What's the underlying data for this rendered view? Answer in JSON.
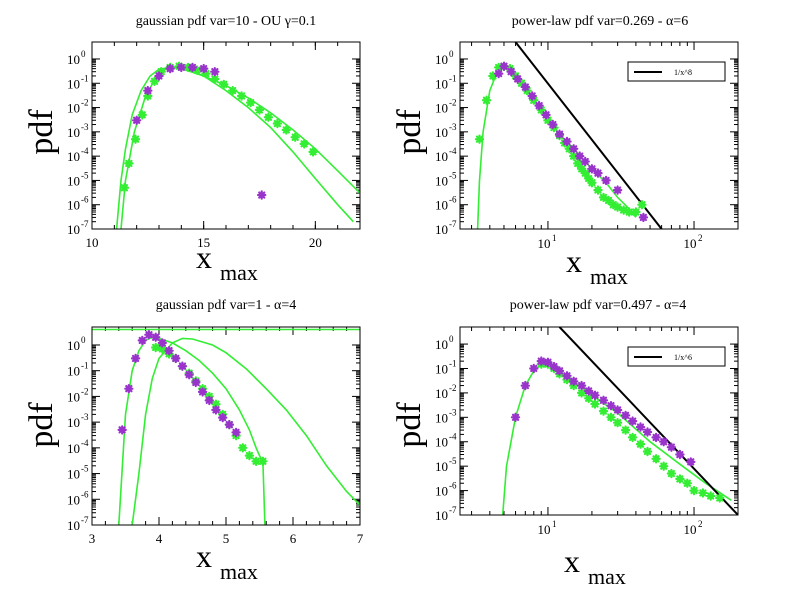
{
  "chart_data": [
    {
      "type": "scatter",
      "title": "gaussian pdf var=10 - OU  γ=0.1",
      "xlabel": "x",
      "xlabel_sub": "max",
      "ylabel": "pdf",
      "xscale": "linear",
      "yscale": "log",
      "xlim": [
        10,
        22
      ],
      "ylim": [
        1e-07,
        5
      ],
      "xticks": [
        10,
        15,
        20
      ],
      "xtick_labels": [
        "10",
        "15",
        "20"
      ],
      "yticks_exp": [
        -7,
        -6,
        -5,
        -4,
        -3,
        -2,
        -1,
        0
      ],
      "legend": null,
      "series": [
        {
          "name": "green points",
          "kind": "points",
          "color": "#33ee33",
          "x": [
            11.45,
            11.65,
            11.95,
            12.25,
            12.5,
            12.8,
            13.1,
            13.5,
            13.9,
            14.3,
            14.7,
            15.1,
            15.5,
            15.9,
            16.3,
            16.7,
            17.1,
            17.5,
            17.9,
            18.3,
            18.7,
            19.1,
            19.5,
            19.9
          ],
          "y": [
            5e-06,
            5e-05,
            0.0005,
            0.005,
            0.03,
            0.12,
            0.3,
            0.45,
            0.5,
            0.45,
            0.35,
            0.25,
            0.15,
            0.09,
            0.05,
            0.03,
            0.016,
            0.008,
            0.004,
            0.0022,
            0.0012,
            0.0006,
            0.00032,
            0.00015
          ]
        },
        {
          "name": "purple points",
          "kind": "points",
          "color": "#9933cc",
          "x": [
            12.0,
            12.5,
            13.0,
            13.5,
            14.0,
            14.5,
            15.0,
            15.5,
            17.6
          ],
          "y": [
            0.003,
            0.05,
            0.2,
            0.4,
            0.45,
            0.45,
            0.4,
            0.3,
            2.5e-06
          ]
        },
        {
          "name": "green curve 1",
          "kind": "line",
          "color": "#33ee33",
          "x": [
            11.1,
            11.3,
            11.5,
            11.8,
            12.2,
            12.6,
            13.0,
            13.5,
            14.0,
            15.0,
            16.0,
            17.0,
            18.0,
            19.0,
            20.0,
            21.0,
            22.0
          ],
          "y": [
            1e-07,
            1e-05,
            0.0002,
            0.005,
            0.05,
            0.2,
            0.38,
            0.45,
            0.4,
            0.2,
            0.08,
            0.025,
            0.006,
            0.0012,
            0.0002,
            2.5e-05,
            3e-06
          ]
        },
        {
          "name": "green curve 2",
          "kind": "line",
          "color": "#33ee33",
          "x": [
            11.3,
            11.5,
            11.9,
            12.4,
            12.9,
            13.4,
            14.0,
            15.0,
            16.0,
            17.0,
            18.0,
            19.0,
            20.0,
            21.0,
            21.7
          ],
          "y": [
            1e-07,
            1e-05,
            0.001,
            0.03,
            0.2,
            0.45,
            0.45,
            0.2,
            0.05,
            0.01,
            0.0015,
            0.00015,
            1.2e-05,
            1e-06,
            2e-07
          ]
        }
      ]
    },
    {
      "type": "scatter",
      "title": "power-law pdf var=0.269 -  α=6",
      "xlabel": "x",
      "xlabel_sub": "max",
      "ylabel": "pdf",
      "xscale": "log",
      "yscale": "log",
      "xlim": [
        2.5,
        200
      ],
      "ylim": [
        1e-07,
        5
      ],
      "xticks_exp": [
        1,
        2
      ],
      "yticks_exp": [
        -7,
        -6,
        -5,
        -4,
        -3,
        -2,
        -1,
        0
      ],
      "legend": {
        "label": "1/x^8",
        "position": "top-right"
      },
      "series": [
        {
          "name": "green points",
          "kind": "points",
          "color": "#33ee33",
          "x": [
            3.4,
            3.8,
            4.2,
            4.6,
            5.0,
            5.5,
            6.0,
            6.6,
            7.2,
            8.0,
            9.0,
            10.0,
            11.0,
            12.0,
            13.0,
            14.0,
            15.0,
            16.0,
            17.0,
            18.0,
            19.0,
            20.0,
            22.0,
            24.0,
            26.0,
            28.0,
            30.0,
            33.0,
            36.0,
            40.0,
            44.0
          ],
          "y": [
            0.0005,
            0.02,
            0.2,
            0.45,
            0.5,
            0.4,
            0.2,
            0.1,
            0.05,
            0.02,
            0.008,
            0.003,
            0.0015,
            0.0007,
            0.00035,
            0.0002,
            0.0001,
            5e-05,
            3e-05,
            2e-05,
            1.2e-05,
            8e-06,
            4e-06,
            2e-06,
            1.5e-06,
            1e-06,
            8e-07,
            6e-07,
            5e-07,
            5e-07,
            1e-06
          ]
        },
        {
          "name": "purple points",
          "kind": "points",
          "color": "#9933cc",
          "x": [
            4.6,
            5.0,
            5.6,
            6.2,
            7.0,
            7.8,
            8.7,
            9.7,
            10.8,
            12.0,
            13.5,
            15.0,
            16.5,
            18.0,
            20.0,
            22.0,
            25.0,
            30.0,
            45.0
          ],
          "y": [
            0.25,
            0.5,
            0.3,
            0.15,
            0.07,
            0.03,
            0.012,
            0.005,
            0.002,
            0.0008,
            0.0004,
            0.0002,
            0.0001,
            6e-05,
            3e-05,
            2e-05,
            1e-05,
            4e-06,
            3e-07
          ]
        },
        {
          "name": "green curve",
          "kind": "line",
          "color": "#33ee33",
          "x": [
            3.3,
            3.4,
            3.6,
            4.0,
            4.5,
            5.0,
            6.0,
            7.0,
            8.0,
            10.0,
            12.0,
            15.0,
            20.0,
            25.0,
            30.0,
            35.0,
            40.0
          ],
          "y": [
            1e-07,
            1e-05,
            0.001,
            0.05,
            0.3,
            0.45,
            0.2,
            0.06,
            0.02,
            0.003,
            0.0008,
            0.0002,
            3e-05,
            8e-06,
            2e-06,
            8e-07,
            3e-07
          ]
        },
        {
          "name": "1/x^8",
          "kind": "line",
          "color": "#000000",
          "x": [
            6.0,
            60.0
          ],
          "y": [
            5.0,
            1e-07
          ]
        }
      ]
    },
    {
      "type": "scatter",
      "title": "gaussian pdf var=1 -   α=4",
      "xlabel": "x",
      "xlabel_sub": "max",
      "ylabel": "pdf",
      "xscale": "linear",
      "yscale": "log",
      "xlim": [
        3,
        7
      ],
      "ylim": [
        1e-07,
        5
      ],
      "xticks": [
        3,
        4,
        5,
        6,
        7
      ],
      "xtick_labels": [
        "3",
        "4",
        "5",
        "6",
        "7"
      ],
      "yticks_exp": [
        -7,
        -6,
        -5,
        -4,
        -3,
        -2,
        -1,
        0
      ],
      "legend": null,
      "series": [
        {
          "name": "green points",
          "kind": "points",
          "color": "#33ee33",
          "x": [
            3.95,
            4.05,
            4.15,
            4.25,
            4.35,
            4.45,
            4.55,
            4.65,
            4.75,
            4.85,
            4.95,
            5.05,
            5.15,
            5.25,
            5.35,
            5.45,
            5.55
          ],
          "y": [
            0.8,
            0.7,
            0.45,
            0.3,
            0.15,
            0.08,
            0.04,
            0.02,
            0.01,
            0.005,
            0.002,
            0.0008,
            0.0003,
            0.0001,
            5e-05,
            3e-05,
            3e-05
          ]
        },
        {
          "name": "purple points",
          "kind": "points",
          "color": "#9933cc",
          "x": [
            3.45,
            3.55,
            3.65,
            3.75,
            3.85,
            3.95,
            4.05,
            4.15,
            4.25,
            4.35,
            4.45,
            4.55,
            4.65,
            4.75,
            4.85,
            4.95,
            5.05,
            5.15
          ],
          "y": [
            0.0005,
            0.02,
            0.3,
            1.5,
            2.5,
            2.0,
            1.2,
            0.6,
            0.3,
            0.15,
            0.07,
            0.035,
            0.015,
            0.007,
            0.003,
            0.0015,
            0.0008,
            0.0004
          ]
        },
        {
          "name": "green curve 1",
          "kind": "line",
          "color": "#33ee33",
          "x": [
            3.4,
            3.5,
            3.6,
            3.7,
            3.8,
            3.9,
            4.0,
            4.2,
            4.4,
            4.6,
            4.8,
            5.0,
            5.2,
            5.35,
            5.45,
            5.5,
            5.55,
            5.58
          ],
          "y": [
            1e-07,
            0.002,
            0.1,
            0.6,
            1.5,
            2.0,
            1.8,
            1.2,
            0.6,
            0.25,
            0.08,
            0.02,
            0.003,
            0.0005,
            0.0001,
            5e-05,
            3e-05,
            1e-07
          ]
        },
        {
          "name": "green curve 2",
          "kind": "line",
          "color": "#33ee33",
          "x": [
            3.6,
            3.7,
            3.8,
            3.9,
            4.0,
            4.2,
            4.35,
            4.5,
            4.8,
            5.0,
            5.3,
            5.6,
            5.9,
            6.2,
            6.5,
            6.8,
            7.0
          ],
          "y": [
            1e-07,
            1e-05,
            0.002,
            0.05,
            0.3,
            1.2,
            1.8,
            1.7,
            1.0,
            0.5,
            0.12,
            0.02,
            0.003,
            0.0003,
            2e-05,
            2e-06,
            6e-07
          ]
        },
        {
          "name": "green horizontal",
          "kind": "line",
          "color": "#33ee33",
          "x": [
            3.0,
            7.0
          ],
          "y": [
            4.0,
            4.0
          ]
        }
      ]
    },
    {
      "type": "scatter",
      "title": "power-law pdf var=0.497 -  α=4",
      "xlabel": "x",
      "xlabel_sub": "max",
      "ylabel": "pdf",
      "xscale": "log",
      "yscale": "log",
      "xlim": [
        2.5,
        200
      ],
      "ylim": [
        1e-07,
        5
      ],
      "xticks_exp": [
        1,
        2
      ],
      "yticks_exp": [
        -7,
        -6,
        -5,
        -4,
        -3,
        -2,
        -1,
        0
      ],
      "legend": {
        "label": "1/x^6",
        "position": "top-right"
      },
      "series": [
        {
          "name": "green points",
          "kind": "points",
          "color": "#33ee33",
          "x": [
            9.0,
            10.0,
            11.0,
            12.0,
            13.5,
            15.0,
            17.0,
            19.0,
            21.0,
            24.0,
            27.0,
            30.0,
            34.0,
            38.0,
            43.0,
            48.0,
            55.0,
            62.0,
            70.0,
            80.0,
            90.0,
            100.0,
            115.0,
            130.0,
            150.0
          ],
          "y": [
            0.15,
            0.15,
            0.1,
            0.06,
            0.035,
            0.02,
            0.01,
            0.006,
            0.0035,
            0.0018,
            0.001,
            0.0006,
            0.0003,
            0.00015,
            8e-05,
            4e-05,
            2e-05,
            1e-05,
            5e-06,
            3e-06,
            2e-06,
            1e-06,
            8e-07,
            6e-07,
            5e-07
          ]
        },
        {
          "name": "purple points",
          "kind": "points",
          "color": "#9933cc",
          "x": [
            6.0,
            7.0,
            8.0,
            9.0,
            10.0,
            11.0,
            12.0,
            13.5,
            15.0,
            17.0,
            19.0,
            21.0,
            24.0,
            27.0,
            30.0,
            34.0,
            38.0,
            43.0,
            48.0,
            55.0,
            62.0,
            70.0,
            80.0,
            95.0
          ],
          "y": [
            0.001,
            0.02,
            0.1,
            0.2,
            0.18,
            0.12,
            0.08,
            0.05,
            0.03,
            0.02,
            0.012,
            0.008,
            0.005,
            0.003,
            0.002,
            0.0012,
            0.0007,
            0.0004,
            0.00025,
            0.00015,
            0.0001,
            6e-05,
            3e-05,
            1.5e-05
          ]
        },
        {
          "name": "green curve",
          "kind": "line",
          "color": "#33ee33",
          "x": [
            4.9,
            5.2,
            6.0,
            7.0,
            8.0,
            9.0,
            10.0,
            12.0,
            15.0,
            20.0,
            30.0,
            50.0,
            80.0,
            120.0,
            180.0
          ],
          "y": [
            1e-07,
            1e-05,
            0.001,
            0.02,
            0.08,
            0.15,
            0.14,
            0.08,
            0.03,
            0.008,
            0.0015,
            0.0001,
            1.2e-05,
            2e-06,
            4e-07
          ]
        },
        {
          "name": "1/x^6",
          "kind": "line",
          "color": "#000000",
          "x": [
            12.0,
            200.0
          ],
          "y": [
            5.0,
            1e-07
          ]
        }
      ]
    }
  ]
}
